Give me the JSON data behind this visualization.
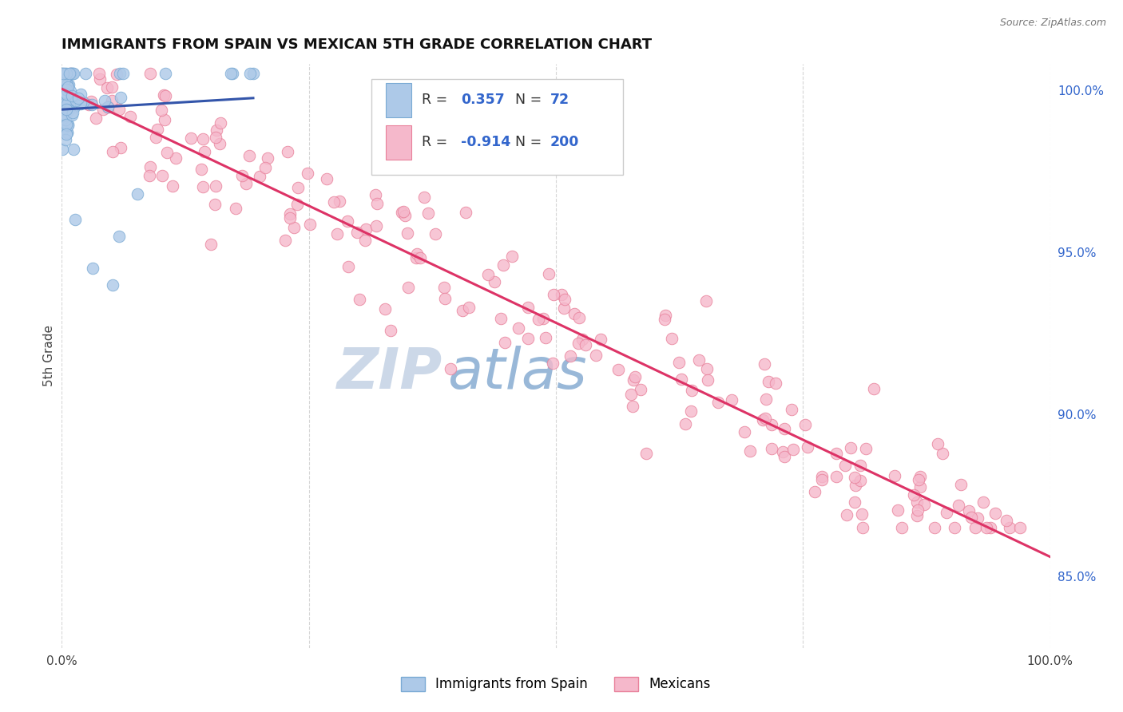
{
  "title": "IMMIGRANTS FROM SPAIN VS MEXICAN 5TH GRADE CORRELATION CHART",
  "source": "Source: ZipAtlas.com",
  "ylabel": "5th Grade",
  "ylabel_right_ticks": [
    85.0,
    90.0,
    95.0,
    100.0
  ],
  "xmin": 0.0,
  "xmax": 1.0,
  "ymin": 0.828,
  "ymax": 1.008,
  "blue_R": 0.357,
  "blue_N": 72,
  "pink_R": -0.914,
  "pink_N": 200,
  "blue_color": "#adc9e8",
  "blue_edge": "#7aaad4",
  "pink_color": "#f5b8cb",
  "pink_edge": "#e8809a",
  "blue_line_color": "#3355aa",
  "pink_line_color": "#dd3366",
  "background_color": "#ffffff",
  "grid_color": "#bbbbbb",
  "title_fontsize": 13,
  "legend_value_color": "#3366cc",
  "watermark_zip_color": "#ccd8e8",
  "watermark_atlas_color": "#99b8d8"
}
